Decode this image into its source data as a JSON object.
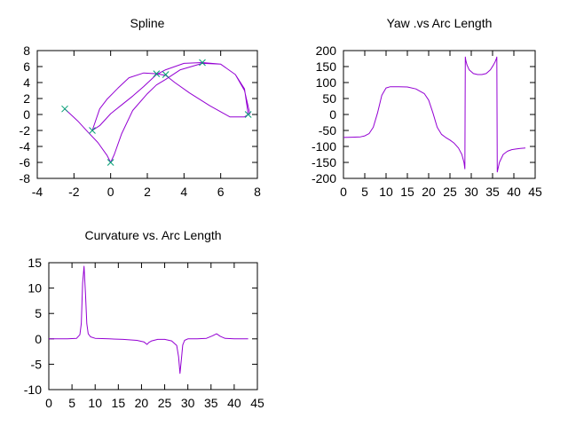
{
  "chart_data": [
    {
      "type": "line",
      "title": "Spline",
      "xlabel": "",
      "ylabel": "",
      "xlim": [
        -4,
        8
      ],
      "ylim": [
        -8,
        8
      ],
      "xticks": [
        -4,
        -2,
        0,
        2,
        4,
        6,
        8
      ],
      "yticks": [
        -8,
        -6,
        -4,
        -2,
        0,
        2,
        4,
        6,
        8
      ],
      "x_tick_labels": [
        "-4",
        "-2",
        "0",
        "2",
        "4",
        "6",
        "8"
      ],
      "y_tick_labels": [
        "-8",
        "-6",
        "-4",
        "-2",
        "0",
        "2",
        "4",
        "6",
        "8"
      ],
      "grid": false,
      "series": [
        {
          "color": "#9400d3",
          "style": "line",
          "x": [
            -2.5,
            -1.8,
            -1.2,
            -0.7,
            -0.2,
            0.0,
            0.2,
            0.6,
            1.2,
            2.0,
            2.5,
            3.0,
            3.8,
            5.0,
            6.0,
            6.8,
            7.3,
            7.5,
            7.3,
            6.5,
            5.4,
            4.3,
            3.5,
            3.0,
            2.5,
            1.8,
            1.0,
            0.4,
            -0.2,
            -0.6,
            -1.0,
            -0.6,
            0.0,
            0.6,
            1.2,
            1.8,
            2.5,
            3.0,
            4.0,
            5.0,
            6.0,
            6.8,
            7.3,
            7.6
          ],
          "y": [
            0.7,
            -0.8,
            -2.3,
            -3.5,
            -5.1,
            -6.0,
            -5.0,
            -2.4,
            0.5,
            2.6,
            3.7,
            4.4,
            5.6,
            6.4,
            6.3,
            5.0,
            3.2,
            0.0,
            -0.3,
            -0.3,
            1.1,
            2.7,
            4.0,
            4.9,
            5.1,
            5.2,
            4.6,
            3.3,
            1.9,
            0.7,
            -2.0,
            -1.4,
            0.1,
            1.2,
            2.3,
            3.5,
            5.0,
            5.6,
            6.4,
            6.5,
            6.3,
            5.0,
            3.0,
            0.0
          ]
        },
        {
          "color": "#009e73",
          "style": "points",
          "x": [
            -2.5,
            -1.0,
            0.0,
            2.5,
            3.0,
            5.0,
            7.5
          ],
          "y": [
            0.7,
            -2.0,
            -6.0,
            5.1,
            5.0,
            6.5,
            0.0
          ]
        }
      ]
    },
    {
      "type": "line",
      "title": "Yaw .vs Arc Length",
      "xlabel": "",
      "ylabel": "",
      "xlim": [
        0,
        45
      ],
      "ylim": [
        -200,
        200
      ],
      "xticks": [
        0,
        5,
        10,
        15,
        20,
        25,
        30,
        35,
        40,
        45
      ],
      "yticks": [
        -200,
        -150,
        -100,
        -50,
        0,
        50,
        100,
        150,
        200
      ],
      "x_tick_labels": [
        "0",
        "5",
        "10",
        "15",
        "20",
        "25",
        "30",
        "35",
        "40",
        "45"
      ],
      "y_tick_labels": [
        "-200",
        "-150",
        "-100",
        "-50",
        "0",
        "50",
        "100",
        "150",
        "200"
      ],
      "grid": false,
      "series": [
        {
          "color": "#9400d3",
          "style": "line",
          "x": [
            0,
            2,
            4,
            5,
            6,
            7,
            8,
            9,
            10,
            11,
            13,
            15,
            17,
            19,
            20,
            21,
            22,
            23,
            24,
            25,
            26,
            27,
            27.8,
            28.3,
            28.5,
            28.6,
            28.7,
            29.0,
            29.5,
            30.5,
            31.5,
            32.5,
            33.5,
            34.5,
            35.2,
            35.6,
            35.9,
            36.0,
            36.1,
            36.6,
            37.5,
            38.5,
            39.5,
            40.5,
            41.5,
            42.7
          ],
          "y": [
            -72,
            -71,
            -70,
            -67,
            -60,
            -40,
            5,
            60,
            83,
            87,
            87,
            86,
            80,
            65,
            45,
            5,
            -40,
            -62,
            -72,
            -80,
            -90,
            -105,
            -125,
            -150,
            -170,
            180,
            170,
            155,
            140,
            128,
            125,
            125,
            128,
            140,
            155,
            165,
            175,
            180,
            -180,
            -150,
            -125,
            -115,
            -110,
            -108,
            -106,
            -105
          ]
        }
      ]
    },
    {
      "type": "line",
      "title": "Curvature vs. Arc Length",
      "xlabel": "",
      "ylabel": "",
      "xlim": [
        0,
        45
      ],
      "ylim": [
        -10,
        15
      ],
      "xticks": [
        0,
        5,
        10,
        15,
        20,
        25,
        30,
        35,
        40,
        45
      ],
      "yticks": [
        -10,
        -5,
        0,
        5,
        10,
        15
      ],
      "x_tick_labels": [
        "0",
        "5",
        "10",
        "15",
        "20",
        "25",
        "30",
        "35",
        "40",
        "45"
      ],
      "y_tick_labels": [
        "-10",
        "-5",
        "0",
        "5",
        "10",
        "15"
      ],
      "grid": false,
      "series": [
        {
          "color": "#9400d3",
          "style": "line",
          "x": [
            0,
            4,
            6,
            6.7,
            7.0,
            7.3,
            7.6,
            7.9,
            8.2,
            8.5,
            9,
            10,
            13,
            16,
            19,
            20.5,
            21.2,
            21.6,
            22.2,
            23.5,
            25,
            26.5,
            27.6,
            28.0,
            28.3,
            28.6,
            28.9,
            29.3,
            30,
            32,
            34,
            35.3,
            36.2,
            37,
            38,
            40,
            43
          ],
          "y": [
            0,
            0,
            0.1,
            0.8,
            3.0,
            11.0,
            14.3,
            9.0,
            3.0,
            1.0,
            0.4,
            0.1,
            0.0,
            -0.1,
            -0.3,
            -0.6,
            -1.1,
            -0.7,
            -0.4,
            -0.1,
            -0.1,
            -0.4,
            -1.3,
            -3.5,
            -6.8,
            -4.0,
            -1.2,
            -0.3,
            0.0,
            0.0,
            0.1,
            0.6,
            1.0,
            0.5,
            0.1,
            0.0,
            0.0
          ]
        }
      ]
    }
  ]
}
